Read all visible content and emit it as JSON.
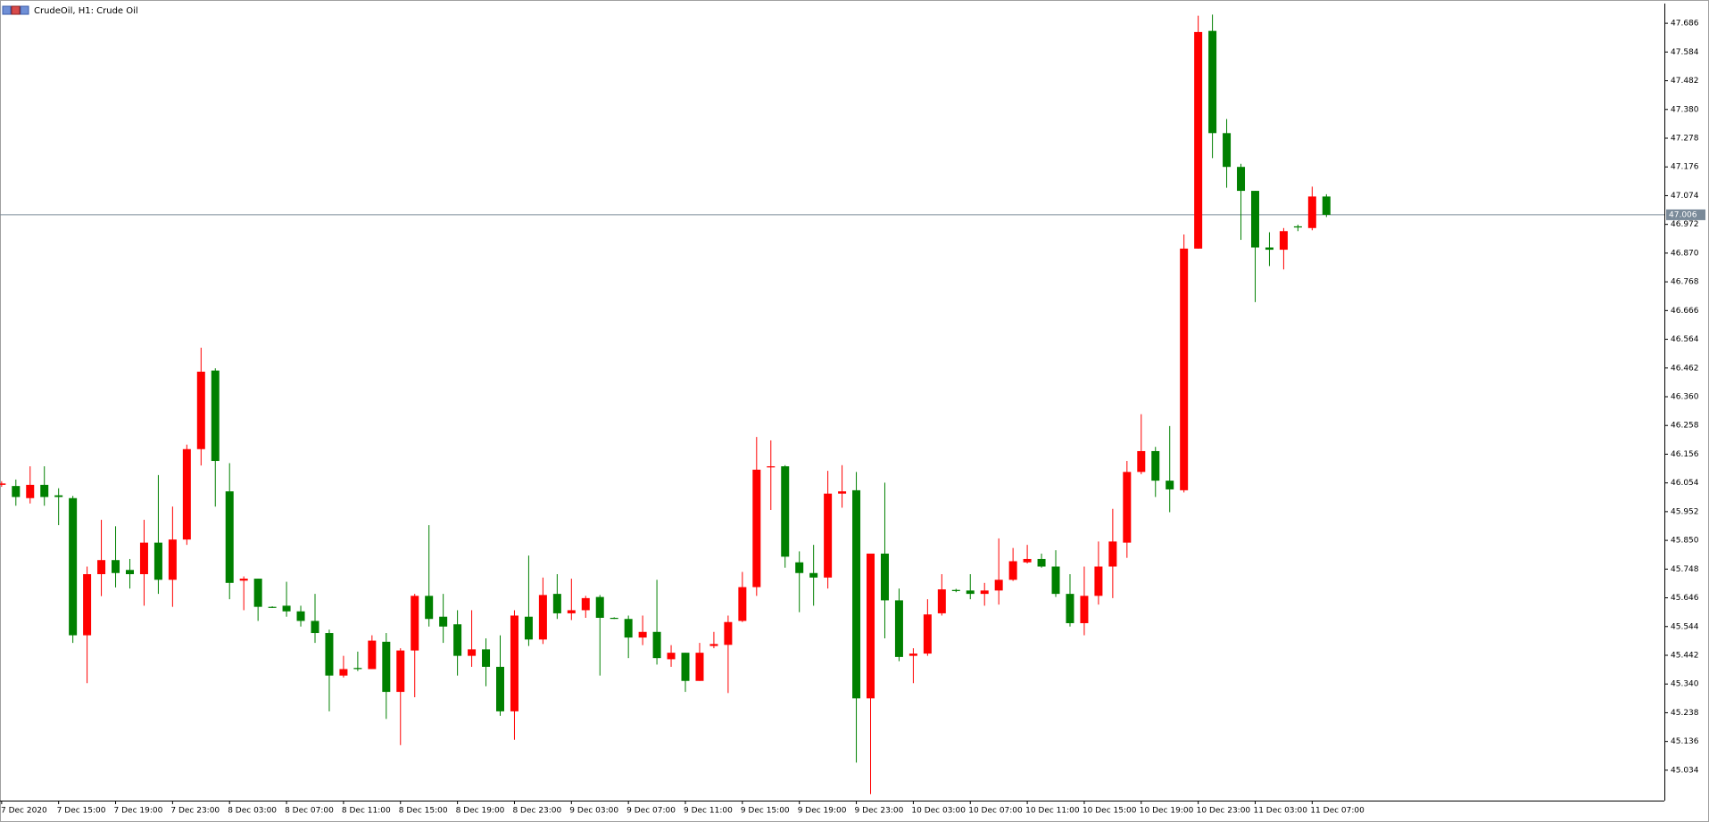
{
  "chart_data": {
    "type": "candlestick",
    "title": "CrudeOil, H1:  Crude Oil",
    "categories": [
      "7 Dec 2020",
      null,
      null,
      null,
      "7 Dec 15:00",
      null,
      null,
      null,
      "7 Dec 19:00",
      null,
      null,
      null,
      "7 Dec 23:00",
      null,
      null,
      null,
      "8 Dec 03:00",
      null,
      null,
      null,
      "8 Dec 07:00",
      null,
      null,
      null,
      "8 Dec 11:00",
      null,
      null,
      null,
      "8 Dec 15:00",
      null,
      null,
      null,
      "8 Dec 19:00",
      null,
      null,
      null,
      "8 Dec 23:00",
      null,
      null,
      null,
      "9 Dec 03:00",
      null,
      null,
      null,
      "9 Dec 07:00",
      null,
      null,
      null,
      "9 Dec 11:00",
      null,
      null,
      null,
      "9 Dec 15:00",
      null,
      null,
      null,
      "9 Dec 19:00",
      null,
      null,
      null,
      "9 Dec 23:00",
      null,
      null,
      null,
      "10 Dec 03:00",
      null,
      null,
      null,
      "10 Dec 07:00",
      null,
      null,
      null,
      "10 Dec 11:00",
      null,
      null,
      null,
      "10 Dec 15:00",
      null,
      null,
      null,
      "10 Dec 19:00",
      null,
      null,
      null,
      "10 Dec 23:00",
      null,
      null,
      null,
      "11 Dec 03:00",
      null,
      null,
      null,
      "11 Dec 07:00",
      null
    ],
    "open": [
      46.047,
      46.043,
      46.0,
      46.047,
      46.01,
      46.0,
      45.513,
      45.73,
      45.78,
      45.745,
      45.73,
      45.842,
      45.71,
      45.853,
      46.174,
      46.453,
      46.024,
      45.707,
      45.714,
      45.614,
      45.618,
      45.598,
      45.564,
      45.521,
      45.37,
      45.397,
      45.393,
      45.49,
      45.312,
      45.459,
      45.653,
      45.579,
      45.552,
      45.44,
      45.463,
      45.401,
      45.243,
      45.579,
      45.498,
      45.66,
      45.591,
      45.602,
      45.649,
      45.575,
      45.571,
      45.505,
      45.525,
      45.428,
      45.451,
      45.351,
      45.475,
      45.479,
      45.564,
      45.684,
      46.109,
      46.113,
      45.772,
      45.734,
      45.718,
      46.016,
      46.028,
      45.289,
      45.803,
      45.637,
      45.44,
      45.448,
      45.591,
      45.674,
      45.672,
      45.66,
      45.672,
      45.71,
      45.772,
      45.784,
      45.757,
      45.66,
      45.556,
      45.653,
      45.757,
      45.842,
      46.093,
      46.167,
      46.062,
      46.028,
      46.886,
      47.659,
      47.296,
      47.176,
      47.091,
      46.89,
      46.882,
      46.965,
      46.959,
      47.071
    ],
    "high": [
      46.06,
      46.066,
      46.113,
      46.113,
      46.035,
      46.008,
      45.757,
      45.923,
      45.9,
      45.784,
      45.923,
      46.082,
      45.97,
      46.19,
      46.534,
      46.461,
      46.124,
      45.722,
      45.714,
      45.616,
      45.703,
      45.618,
      45.66,
      45.533,
      45.44,
      45.455,
      45.513,
      45.521,
      45.467,
      45.66,
      45.904,
      45.66,
      45.602,
      45.602,
      45.502,
      45.513,
      45.602,
      45.796,
      45.718,
      45.73,
      45.714,
      45.653,
      45.656,
      45.577,
      45.583,
      45.583,
      45.71,
      45.478,
      45.451,
      45.486,
      45.525,
      45.583,
      45.738,
      46.217,
      46.205,
      46.117,
      45.811,
      45.834,
      46.097,
      46.117,
      46.093,
      45.803,
      46.055,
      45.679,
      45.467,
      45.641,
      45.73,
      45.678,
      45.73,
      45.699,
      45.857,
      45.823,
      45.834,
      45.803,
      45.815,
      45.73,
      45.757,
      45.846,
      45.962,
      46.132,
      46.298,
      46.182,
      46.256,
      46.936,
      47.713,
      47.717,
      47.346,
      47.187,
      47.091,
      46.944,
      46.959,
      46.971,
      47.106,
      47.079
    ],
    "low": [
      46.04,
      45.973,
      45.981,
      45.973,
      45.904,
      45.486,
      45.343,
      45.652,
      45.683,
      45.679,
      45.618,
      45.66,
      45.614,
      45.834,
      46.116,
      45.97,
      45.641,
      45.602,
      45.564,
      45.61,
      45.579,
      45.544,
      45.486,
      45.243,
      45.363,
      45.386,
      45.393,
      45.216,
      45.123,
      45.293,
      45.544,
      45.486,
      45.37,
      45.401,
      45.332,
      45.227,
      45.142,
      45.475,
      45.482,
      45.571,
      45.567,
      45.575,
      45.37,
      45.571,
      45.432,
      45.478,
      45.409,
      45.401,
      45.312,
      45.351,
      45.467,
      45.308,
      45.56,
      45.653,
      45.958,
      45.753,
      45.595,
      45.618,
      45.679,
      45.966,
      45.061,
      44.949,
      45.502,
      45.421,
      45.343,
      45.44,
      45.583,
      45.666,
      45.641,
      45.618,
      45.622,
      45.706,
      45.768,
      45.753,
      45.649,
      45.544,
      45.513,
      45.622,
      45.645,
      45.788,
      46.085,
      46.004,
      45.95,
      46.02,
      46.886,
      47.207,
      47.102,
      46.917,
      46.696,
      46.824,
      46.812,
      46.948,
      46.951,
      46.998
    ],
    "close": [
      46.052,
      46.004,
      46.047,
      46.004,
      46.004,
      45.513,
      45.73,
      45.78,
      45.734,
      45.73,
      45.842,
      45.71,
      45.853,
      46.174,
      46.449,
      46.132,
      45.699,
      45.714,
      45.614,
      45.612,
      45.598,
      45.564,
      45.521,
      45.37,
      45.393,
      45.393,
      45.494,
      45.312,
      45.459,
      45.653,
      45.571,
      45.544,
      45.44,
      45.463,
      45.401,
      45.243,
      45.583,
      45.498,
      45.656,
      45.591,
      45.602,
      45.645,
      45.575,
      45.573,
      45.505,
      45.525,
      45.432,
      45.451,
      45.351,
      45.451,
      45.482,
      45.56,
      45.684,
      46.101,
      46.113,
      45.792,
      45.734,
      45.718,
      46.016,
      46.024,
      45.289,
      45.803,
      45.637,
      45.436,
      45.448,
      45.587,
      45.676,
      45.67,
      45.66,
      45.672,
      45.71,
      45.776,
      45.784,
      45.757,
      45.66,
      45.556,
      45.653,
      45.757,
      45.846,
      46.093,
      46.167,
      46.062,
      46.031,
      46.886,
      47.655,
      47.296,
      47.176,
      47.091,
      46.89,
      46.882,
      46.948,
      46.961,
      47.071,
      47.006
    ],
    "up_color": "#ff0000",
    "down_color": "#008000",
    "last_price": 47.006,
    "last_price_color": "#7a8a99",
    "ylim": [
      44.926,
      47.756
    ],
    "yticks": [
      45.034,
      45.136,
      45.238,
      {
        "value": 45.34,
        "label": "45.340"
      },
      45.442,
      45.544,
      45.646,
      45.748,
      {
        "value": 45.85,
        "label": "45.850"
      },
      45.952,
      46.054,
      46.156,
      46.258,
      {
        "value": 46.36,
        "label": "46.360"
      },
      46.462,
      46.564,
      46.666,
      46.768,
      {
        "value": 46.87,
        "label": "46.870"
      },
      46.972,
      47.074,
      47.176,
      47.278,
      {
        "value": 47.38,
        "label": "47.380"
      },
      47.482,
      47.584,
      47.686
    ]
  }
}
